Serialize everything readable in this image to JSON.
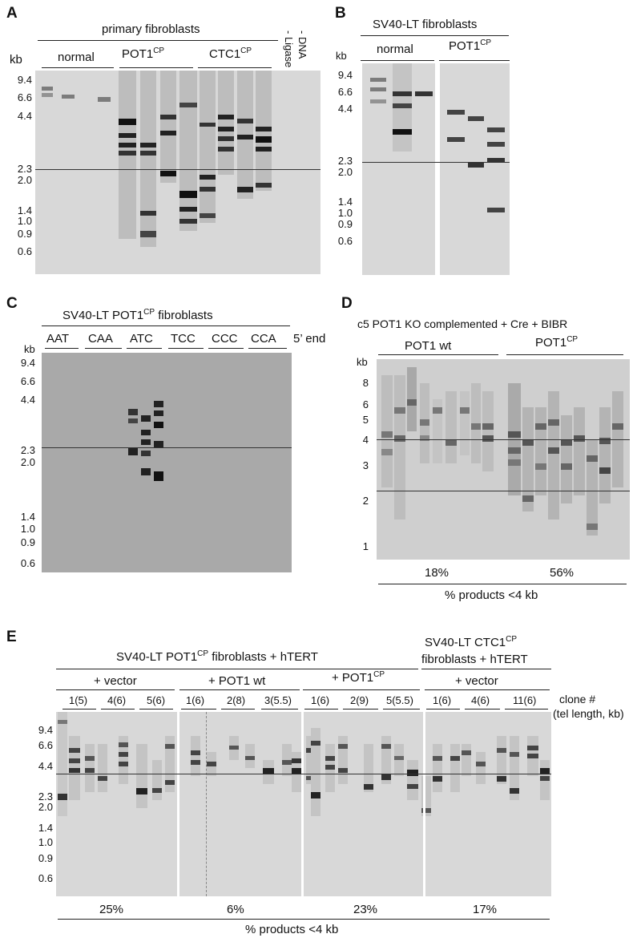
{
  "panels": {
    "A": {
      "label": "A",
      "group_title": "primary fibroblasts",
      "kb_label": "kb",
      "lane_groups": [
        {
          "text": "normal",
          "sup": ""
        },
        {
          "text": "POT1",
          "sup": "CP"
        },
        {
          "text": "CTC1",
          "sup": "CP"
        }
      ],
      "controls": [
        "- Ligase",
        "- DNA"
      ],
      "markers": [
        "9.4",
        "6.6",
        "4.4",
        "2.3",
        "2.0",
        "1.4",
        "1.0",
        "0.9",
        "0.6"
      ]
    },
    "B": {
      "label": "B",
      "group_title": "SV40-LT fibroblasts",
      "kb_label": "kb",
      "lane_groups": [
        {
          "text": "normal",
          "sup": ""
        },
        {
          "text": "POT1",
          "sup": "CP"
        }
      ],
      "markers": [
        "9.4",
        "6.6",
        "4.4",
        "2.3",
        "2.0",
        "1.4",
        "1.0",
        "0.9",
        "0.6"
      ]
    },
    "C": {
      "label": "C",
      "title": {
        "text": "SV40-LT POT1",
        "sup": "CP",
        "after": " fibroblasts"
      },
      "kb_label": "kb",
      "ends": [
        "AAT",
        "CAA",
        "ATC",
        "TCC",
        "CCC",
        "CCA"
      ],
      "end_label": "5’ end",
      "markers": [
        "9.4",
        "6.6",
        "4.4",
        "2.3",
        "2.0",
        "1.4",
        "1.0",
        "0.9",
        "0.6"
      ]
    },
    "D": {
      "label": "D",
      "title": "c5 POT1 KO complemented + Cre + BIBR",
      "kb_label": "kb",
      "lane_groups": [
        {
          "text": "POT1 wt",
          "sup": ""
        },
        {
          "text": "POT1",
          "sup": "CP"
        }
      ],
      "markers": [
        "8",
        "6",
        "5",
        "4",
        "3",
        "2",
        "1"
      ],
      "percents": [
        "18%",
        "56%"
      ],
      "footer": "% products <4 kb"
    },
    "E": {
      "label": "E",
      "title_left": {
        "text": "SV40-LT POT1",
        "sup": "CP",
        "after": " fibroblasts + hTERT"
      },
      "title_right_1": {
        "text": "SV40-LT CTC1",
        "sup": "CP"
      },
      "title_right_2": "fibroblasts + hTERT",
      "conditions": [
        {
          "text": "+ vector",
          "sup": ""
        },
        {
          "text": "+ POT1 wt",
          "sup": ""
        },
        {
          "text": "+ POT1",
          "sup": "CP"
        },
        {
          "text": "+ vector",
          "sup": ""
        }
      ],
      "clones": [
        "1(5)",
        "4(6)",
        "5(6)",
        "1(6)",
        "2(8)",
        "3(5.5)",
        "1(6)",
        "2(9)",
        "5(5.5)",
        "1(6)",
        "4(6)",
        "11(6)"
      ],
      "clone_header_1": "clone #",
      "clone_header_2": "(tel length, kb)",
      "markers": [
        "9.4",
        "6.6",
        "4.4",
        "2.3",
        "2.0",
        "1.4",
        "1.0",
        "0.9",
        "0.6"
      ],
      "percents": [
        "25%",
        "6%",
        "23%",
        "17%"
      ],
      "footer": "% products <4 kb"
    }
  },
  "colors": {
    "gel": "#d8d8d8",
    "band": "#1a1a1a",
    "ink": "#111111"
  }
}
